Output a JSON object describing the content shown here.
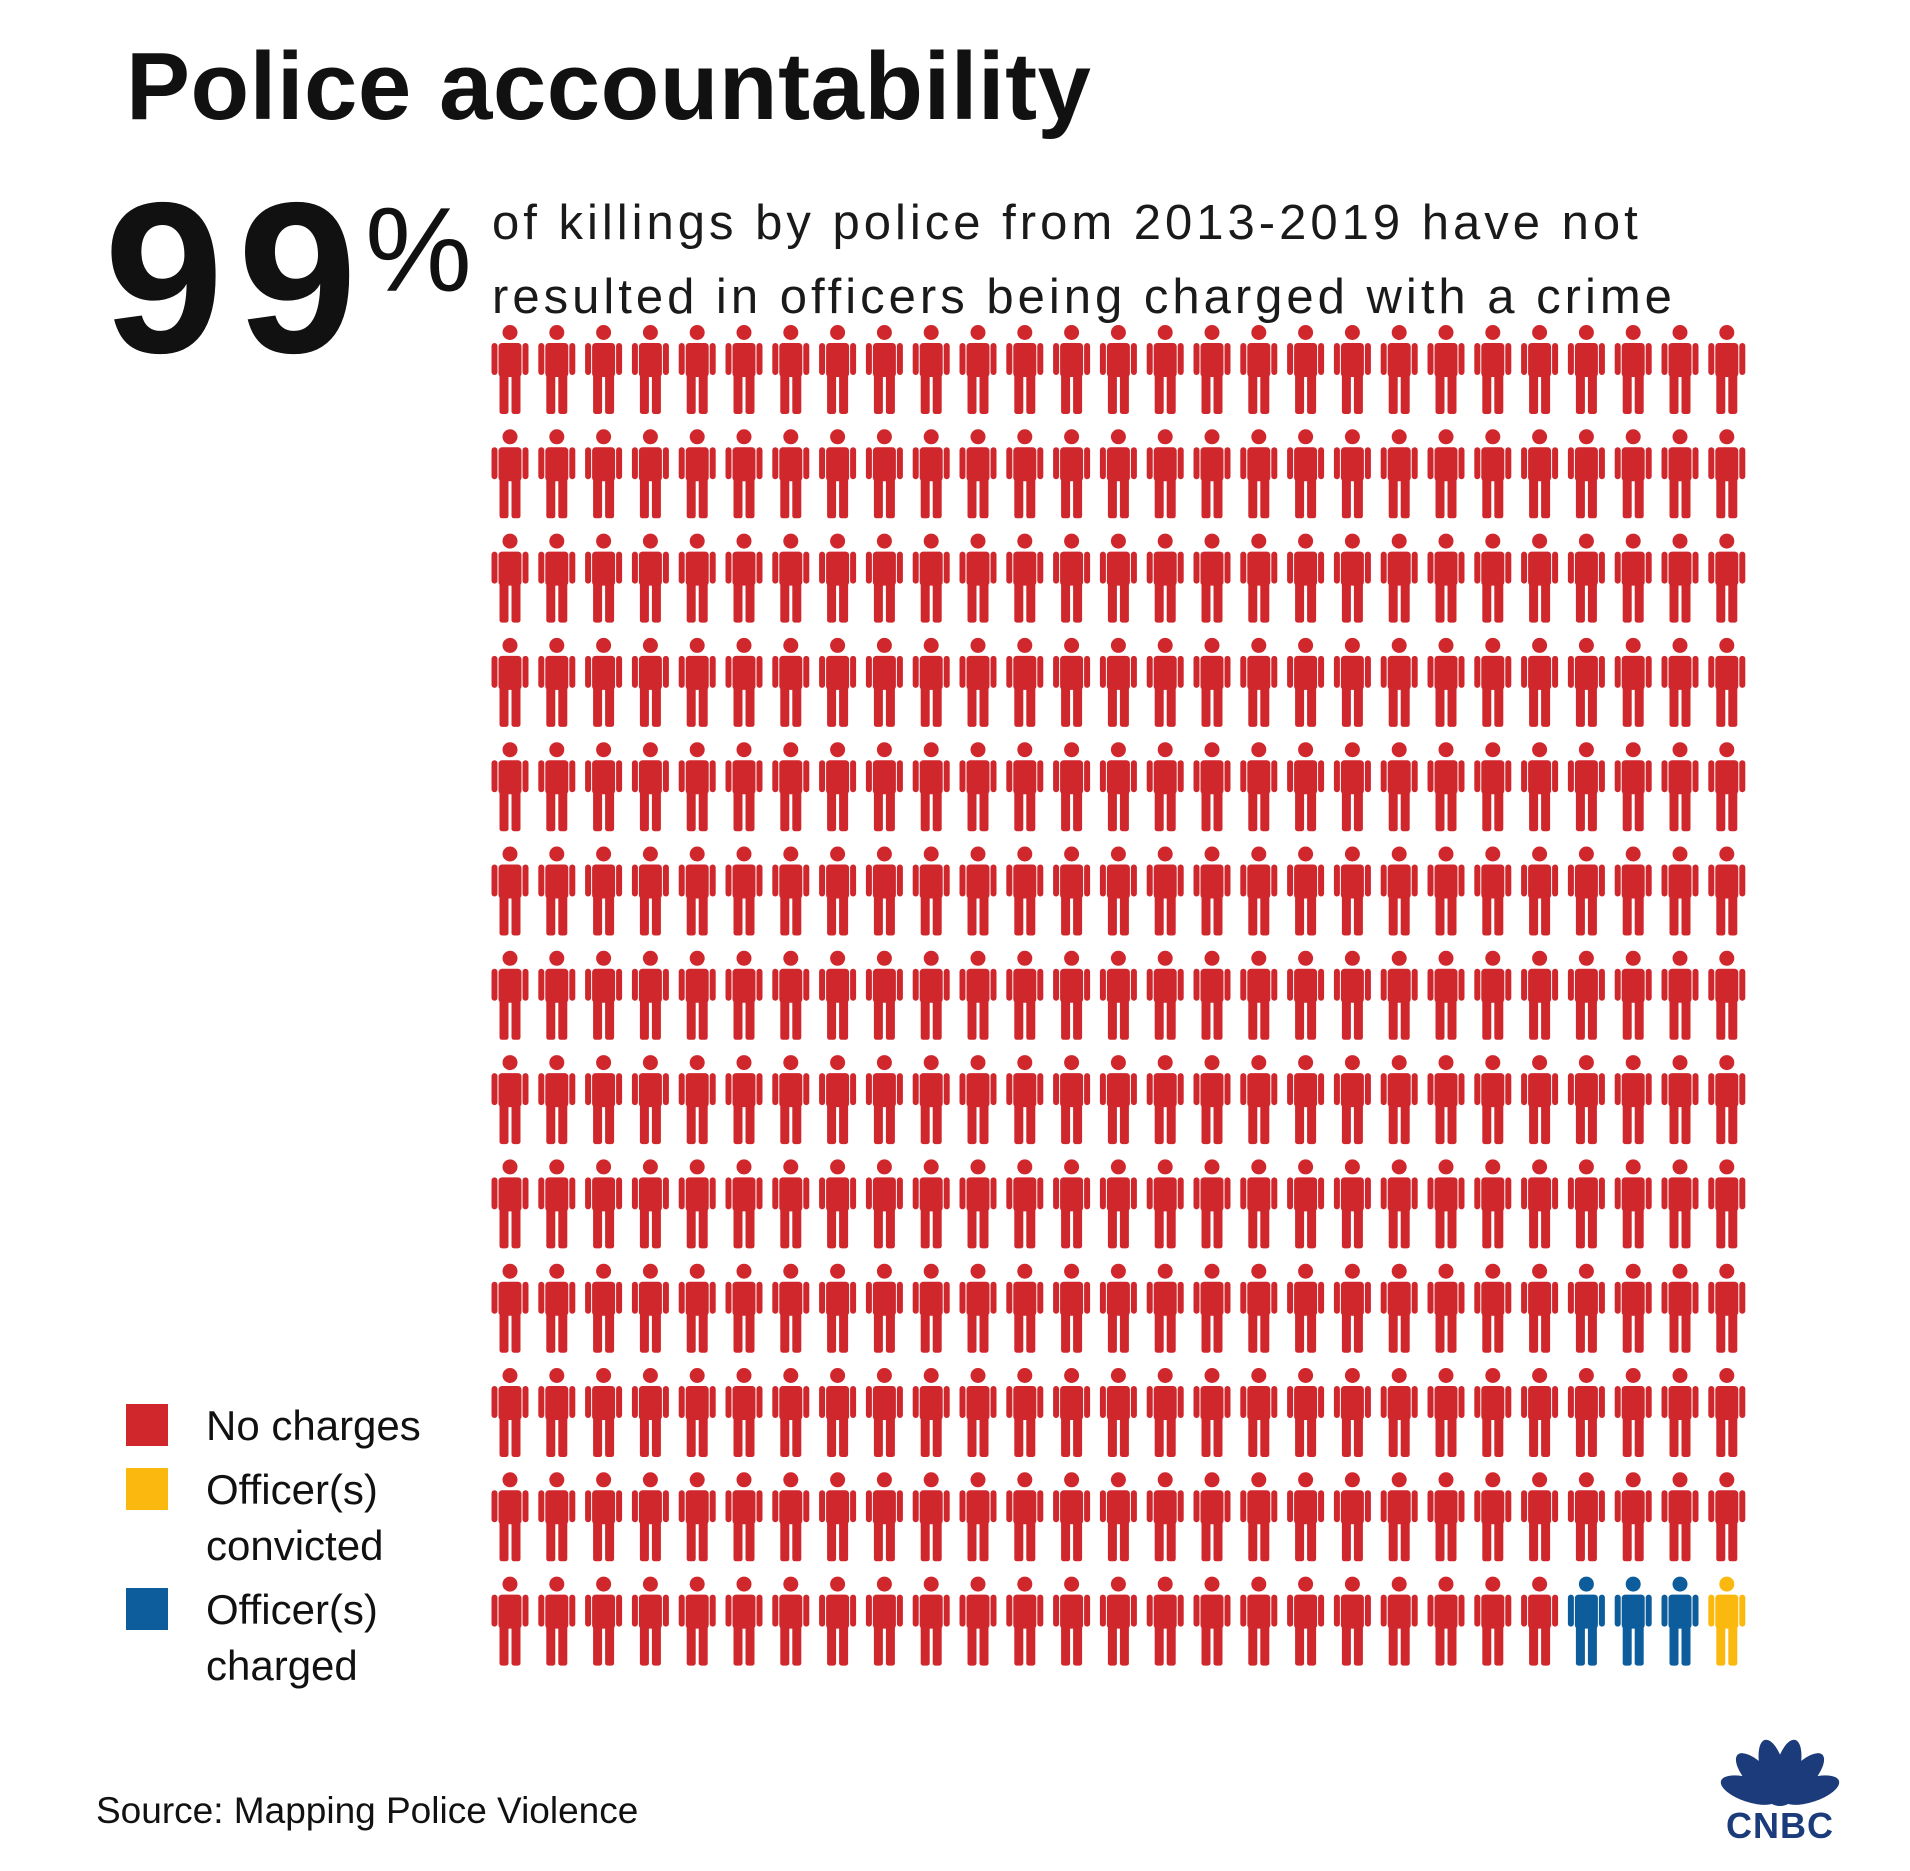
{
  "title": "Police accountability",
  "big_stat": {
    "number": "99",
    "percent": "%"
  },
  "subtitle": {
    "line1": "of killings by police from 2013-2019 have not",
    "line2": "resulted in officers being charged with a crime"
  },
  "legend": [
    {
      "label": "No charges",
      "color": "#d0272d"
    },
    {
      "label": "Officer(s) convicted",
      "color": "#fbb90f"
    },
    {
      "label": "Officer(s) charged",
      "color": "#0d5c9b"
    }
  ],
  "chart_data": {
    "type": "waffle",
    "rows": 13,
    "columns": 27,
    "total_icons": 351,
    "series": [
      {
        "name": "No charges",
        "count": 347,
        "color": "#d0272d"
      },
      {
        "name": "Officer(s) charged",
        "count": 3,
        "color": "#0d5c9b"
      },
      {
        "name": "Officer(s) convicted",
        "count": 1,
        "color": "#fbb90f"
      }
    ],
    "fill_order": [
      "No charges",
      "Officer(s) charged",
      "Officer(s) convicted"
    ],
    "percent_no_charges": 99
  },
  "source": "Source: Mapping Police Violence",
  "logo": {
    "text": "CNBC",
    "icon": "nbc-peacock-icon",
    "color": "#1c3b7a"
  }
}
